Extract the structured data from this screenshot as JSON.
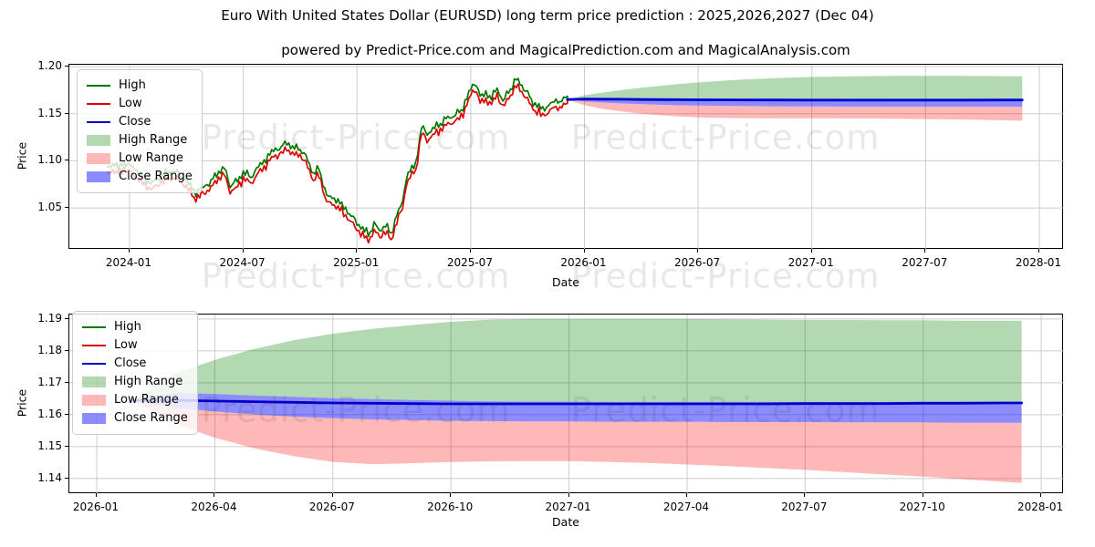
{
  "header": {
    "title": "Euro With United States Dollar (EURUSD) long term price prediction : 2025,2026,2027 (Dec 04)",
    "subtitle": "powered by Predict-Price.com and MagicalPrediction.com and MagicalAnalysis.com"
  },
  "watermark": {
    "text": "Predict-Price.com"
  },
  "colors": {
    "high_line": "#007800",
    "low_line": "#e00000",
    "close_line": "#0000cc",
    "high_range": "rgba(0,128,0,0.30)",
    "low_range": "rgba(255,0,0,0.28)",
    "close_range": "rgba(0,0,255,0.45)",
    "grid": "#cccccc",
    "spine": "#000000"
  },
  "legend_items": [
    {
      "label": "High",
      "type": "line",
      "color": "high_line"
    },
    {
      "label": "Low",
      "type": "line",
      "color": "low_line"
    },
    {
      "label": "Close",
      "type": "line",
      "color": "close_line"
    },
    {
      "label": "High Range",
      "type": "patch",
      "color": "high_range"
    },
    {
      "label": "Low Range",
      "type": "patch",
      "color": "low_range"
    },
    {
      "label": "Close Range",
      "type": "patch",
      "color": "close_range"
    }
  ],
  "chart_data": [
    {
      "type": "line",
      "title": "",
      "xlabel": "Date",
      "ylabel": "Price",
      "legend_position": "upper left",
      "grid": true,
      "x_unit": "months since 2024-01",
      "x_tick_labels": [
        "2024-01",
        "2024-07",
        "2025-01",
        "2025-07",
        "2026-01",
        "2026-07",
        "2027-01",
        "2027-07",
        "2028-01"
      ],
      "x_tick_months": [
        0,
        6,
        12,
        18,
        24,
        30,
        36,
        42,
        48
      ],
      "y_tick_labels": [
        "1.05",
        "1.10",
        "1.15",
        "1.20"
      ],
      "y_tick_values": [
        1.05,
        1.1,
        1.15,
        1.2
      ],
      "ylim": [
        1.0057,
        1.2019
      ],
      "series_legend": [
        "High",
        "Low",
        "Close",
        "High Range",
        "Low Range",
        "Close Range"
      ],
      "history": {
        "description": "daily High/Low lines Dec 2023 - Dec 2025, close anchors [month, price]",
        "anchors_close": [
          [
            -1.2,
            1.088
          ],
          [
            -0.9,
            1.093
          ],
          [
            -0.6,
            1.09
          ],
          [
            -0.3,
            1.096
          ],
          [
            0.0,
            1.092
          ],
          [
            0.4,
            1.085
          ],
          [
            0.8,
            1.079
          ],
          [
            1.2,
            1.073
          ],
          [
            1.6,
            1.079
          ],
          [
            2.0,
            1.086
          ],
          [
            2.4,
            1.085
          ],
          [
            2.8,
            1.079
          ],
          [
            3.2,
            1.072
          ],
          [
            3.5,
            1.063
          ],
          [
            3.8,
            1.067
          ],
          [
            4.2,
            1.073
          ],
          [
            4.6,
            1.084
          ],
          [
            5.0,
            1.088
          ],
          [
            5.3,
            1.071
          ],
          [
            5.6,
            1.075
          ],
          [
            6.0,
            1.084
          ],
          [
            6.4,
            1.079
          ],
          [
            6.8,
            1.092
          ],
          [
            7.2,
            1.098
          ],
          [
            7.6,
            1.108
          ],
          [
            8.0,
            1.112
          ],
          [
            8.3,
            1.117
          ],
          [
            8.6,
            1.109
          ],
          [
            9.0,
            1.111
          ],
          [
            9.4,
            1.098
          ],
          [
            9.7,
            1.082
          ],
          [
            10.0,
            1.088
          ],
          [
            10.4,
            1.061
          ],
          [
            10.8,
            1.056
          ],
          [
            11.2,
            1.05
          ],
          [
            11.6,
            1.042
          ],
          [
            12.0,
            1.03
          ],
          [
            12.3,
            1.024
          ],
          [
            12.6,
            1.02
          ],
          [
            12.9,
            1.03
          ],
          [
            13.2,
            1.022
          ],
          [
            13.5,
            1.028
          ],
          [
            13.8,
            1.02
          ],
          [
            14.1,
            1.04
          ],
          [
            14.4,
            1.052
          ],
          [
            14.6,
            1.078
          ],
          [
            14.9,
            1.09
          ],
          [
            15.1,
            1.094
          ],
          [
            15.4,
            1.133
          ],
          [
            15.7,
            1.124
          ],
          [
            16.0,
            1.131
          ],
          [
            16.5,
            1.139
          ],
          [
            17.0,
            1.143
          ],
          [
            17.5,
            1.151
          ],
          [
            18.0,
            1.172
          ],
          [
            18.25,
            1.18
          ],
          [
            18.5,
            1.166
          ],
          [
            18.8,
            1.169
          ],
          [
            19.1,
            1.163
          ],
          [
            19.4,
            1.173
          ],
          [
            19.7,
            1.161
          ],
          [
            20.0,
            1.171
          ],
          [
            20.4,
            1.182
          ],
          [
            20.7,
            1.177
          ],
          [
            21.0,
            1.169
          ],
          [
            21.4,
            1.156
          ],
          [
            21.8,
            1.151
          ],
          [
            22.1,
            1.156
          ],
          [
            22.4,
            1.161
          ],
          [
            22.7,
            1.159
          ],
          [
            23.0,
            1.164
          ],
          [
            23.1,
            1.165
          ]
        ],
        "sample_step_months": 0.1,
        "high_spread": 0.0032,
        "low_spread": 0.0036,
        "noise_amplitude": 0.0026
      },
      "forecast": {
        "months": [
          23.1,
          24,
          25,
          26,
          27,
          28,
          29,
          30,
          32,
          34,
          36,
          38,
          40,
          42,
          44,
          46,
          47.1
        ],
        "close": [
          1.165,
          1.1655,
          1.1653,
          1.1652,
          1.165,
          1.1649,
          1.1648,
          1.1647,
          1.1646,
          1.1645,
          1.1644,
          1.1644,
          1.1644,
          1.1644,
          1.1644,
          1.1645,
          1.1645
        ],
        "high_top": [
          1.165,
          1.1695,
          1.1725,
          1.1752,
          1.1775,
          1.1796,
          1.1815,
          1.1831,
          1.1858,
          1.1877,
          1.1889,
          1.1896,
          1.19,
          1.19,
          1.19,
          1.1898,
          1.1896
        ],
        "low_bottom": [
          1.165,
          1.159,
          1.155,
          1.1522,
          1.15,
          1.1483,
          1.147,
          1.1461,
          1.1452,
          1.145,
          1.145,
          1.1449,
          1.1447,
          1.1443,
          1.1438,
          1.143,
          1.1424
        ],
        "close_band_top": [
          1.165,
          1.1668,
          1.1669,
          1.1668,
          1.1666,
          1.1665,
          1.1663,
          1.1662,
          1.166,
          1.1658,
          1.1657,
          1.1656,
          1.1656,
          1.1656,
          1.1656,
          1.1657,
          1.1657
        ],
        "close_band_bottom": [
          1.165,
          1.163,
          1.1618,
          1.1608,
          1.16,
          1.1594,
          1.1589,
          1.1586,
          1.1581,
          1.1578,
          1.1576,
          1.1575,
          1.1574,
          1.1574,
          1.1574,
          1.1574,
          1.1574
        ]
      }
    },
    {
      "type": "line",
      "title": "",
      "xlabel": "Date",
      "ylabel": "Price",
      "legend_position": "upper left",
      "grid": true,
      "x_unit": "months since 2026-01",
      "x_tick_labels": [
        "2026-01",
        "2026-04",
        "2026-07",
        "2026-10",
        "2027-01",
        "2027-04",
        "2027-07",
        "2027-10",
        "2028-01"
      ],
      "x_tick_months": [
        0,
        3,
        6,
        9,
        12,
        15,
        18,
        21,
        24
      ],
      "y_tick_labels": [
        "1.14",
        "1.15",
        "1.16",
        "1.17",
        "1.18",
        "1.19"
      ],
      "y_tick_values": [
        1.14,
        1.15,
        1.16,
        1.17,
        1.18,
        1.19
      ],
      "ylim": [
        1.1351,
        1.1914
      ],
      "series_legend": [
        "High",
        "Low",
        "Close",
        "High Range",
        "Low Range",
        "Close Range"
      ],
      "history": null,
      "forecast": {
        "months": [
          0.9,
          2,
          3,
          4,
          5,
          6,
          7,
          8,
          9,
          10,
          11,
          12,
          13,
          14,
          15,
          16,
          17,
          18,
          19,
          20,
          21,
          22,
          23,
          23.5
        ],
        "close": [
          1.1645,
          1.1645,
          1.1643,
          1.1641,
          1.1639,
          1.1637,
          1.1636,
          1.1635,
          1.1634,
          1.1634,
          1.1634,
          1.1634,
          1.1634,
          1.1634,
          1.1634,
          1.1634,
          1.1634,
          1.1635,
          1.1635,
          1.1635,
          1.1636,
          1.1636,
          1.1637,
          1.1637
        ],
        "high_top": [
          1.1645,
          1.173,
          1.1772,
          1.1806,
          1.1833,
          1.1854,
          1.1869,
          1.1881,
          1.1891,
          1.1898,
          1.19,
          1.19,
          1.19,
          1.19,
          1.19,
          1.1899,
          1.1898,
          1.1897,
          1.1897,
          1.1896,
          1.1896,
          1.1895,
          1.1895,
          1.1895
        ],
        "low_bottom": [
          1.1645,
          1.157,
          1.1528,
          1.1495,
          1.147,
          1.1452,
          1.1445,
          1.1448,
          1.1452,
          1.1454,
          1.1455,
          1.1455,
          1.1452,
          1.1449,
          1.1444,
          1.1439,
          1.1433,
          1.1427,
          1.142,
          1.1413,
          1.1406,
          1.1398,
          1.139,
          1.1386
        ],
        "close_band_top": [
          1.1645,
          1.1669,
          1.1665,
          1.166,
          1.1656,
          1.1652,
          1.1649,
          1.1646,
          1.1644,
          1.1642,
          1.1641,
          1.1641,
          1.164,
          1.164,
          1.164,
          1.164,
          1.164,
          1.164,
          1.164,
          1.164,
          1.1641,
          1.1641,
          1.1641,
          1.1641
        ],
        "close_band_bottom": [
          1.1645,
          1.1622,
          1.161,
          1.1601,
          1.1594,
          1.1589,
          1.1585,
          1.1583,
          1.1581,
          1.158,
          1.1579,
          1.1579,
          1.1578,
          1.1578,
          1.1578,
          1.1577,
          1.1577,
          1.1577,
          1.1576,
          1.1576,
          1.1576,
          1.1575,
          1.1575,
          1.1575
        ]
      }
    }
  ]
}
